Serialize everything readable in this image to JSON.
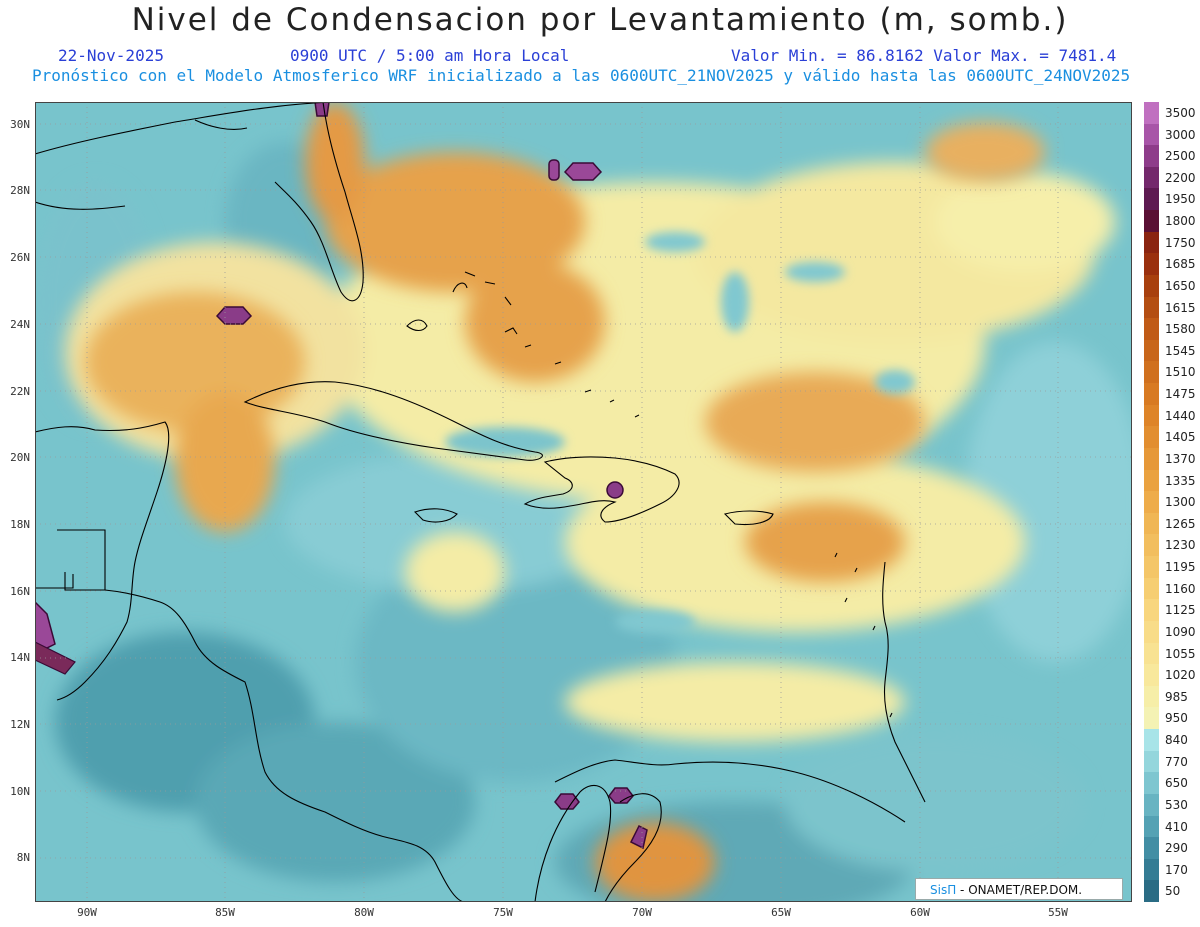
{
  "title": "Nivel de Condensacion por Levantamiento (m, somb.)",
  "date": "22-Nov-2025",
  "time": "0900 UTC / 5:00 am Hora Local",
  "minmax": "Valor Min. = 86.8162  Valor Max. = 7481.4",
  "forecast_note": "Pronóstico con el Modelo Atmosferico WRF inicializado a las 0600UTC_21NOV2025 y válido hasta las  0600UTC_24NOV2025",
  "lat_labels": [
    "30N",
    "28N",
    "26N",
    "24N",
    "22N",
    "20N",
    "18N",
    "16N",
    "14N",
    "12N",
    "10N",
    "8N"
  ],
  "lon_labels": [
    "90W",
    "85W",
    "80W",
    "75W",
    "70W",
    "65W",
    "60W",
    "55W"
  ],
  "legend": {
    "labels": [
      "3500",
      "3000",
      "2500",
      "2200",
      "1950",
      "1800",
      "1750",
      "1685",
      "1650",
      "1615",
      "1580",
      "1545",
      "1510",
      "1475",
      "1440",
      "1405",
      "1370",
      "1335",
      "1300",
      "1265",
      "1230",
      "1195",
      "1160",
      "1125",
      "1090",
      "1055",
      "1020",
      "985",
      "950",
      "840",
      "770",
      "650",
      "530",
      "410",
      "290",
      "170",
      "50"
    ],
    "colors": [
      "#c070c0",
      "#a855a8",
      "#8e3c8a",
      "#74286c",
      "#5e1a52",
      "#5a1034",
      "#8a2410",
      "#9a300e",
      "#a8400e",
      "#b44e12",
      "#c05a16",
      "#c8661a",
      "#d0701e",
      "#d87a22",
      "#de8428",
      "#e28e30",
      "#e69838",
      "#ea a240",
      "#eeac4a",
      "#f0b654",
      "#f2be5e",
      "#f4c668",
      "#f6ce72",
      "#f8d67e",
      "#f8dc88",
      "#f8e292",
      "#f8e89c",
      "#f6eea8",
      "#f4f2b4",
      "#a8e4e8",
      "#94d6dc",
      "#7ec6d0",
      "#68b4c2",
      "#54a2b4",
      "#428ea4",
      "#347c94",
      "#2a6c84"
    ]
  },
  "credit": {
    "brand": "SisΠ",
    "text": " - ONAMET/REP.DOM."
  }
}
